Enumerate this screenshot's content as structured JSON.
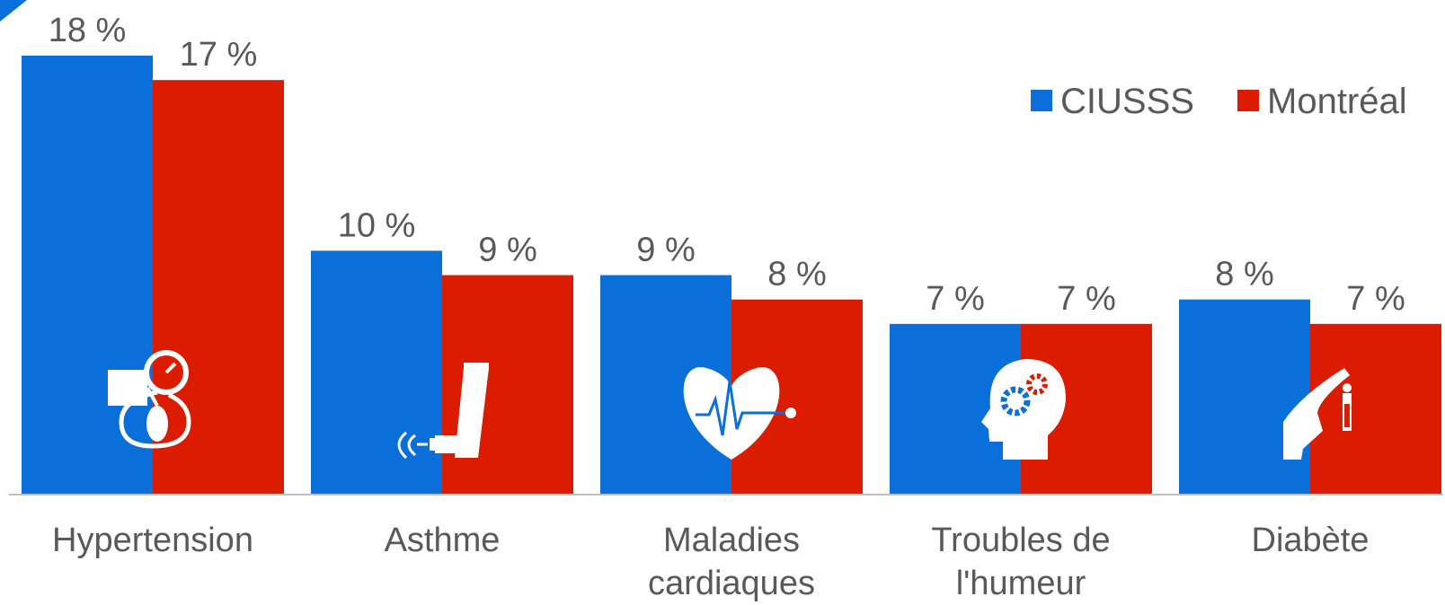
{
  "chart_data": {
    "type": "bar",
    "categories": [
      [
        "Hypertension"
      ],
      [
        "Asthme"
      ],
      [
        "Maladies",
        "cardiaques"
      ],
      [
        "Troubles de",
        "l'humeur"
      ],
      [
        "Diabète"
      ]
    ],
    "category_icons": [
      "blood-pressure-monitor-icon",
      "inhaler-icon",
      "heart-ecg-icon",
      "brain-gears-icon",
      "glucose-test-finger-icon"
    ],
    "series": [
      {
        "name": "CIUSSS",
        "color": "#0A6FD8",
        "values": [
          18,
          10,
          9,
          7,
          8
        ],
        "labels": [
          "18 %",
          "10 %",
          "9 %",
          "7 %",
          "8 %"
        ]
      },
      {
        "name": "Montréal",
        "color": "#DC1C00",
        "values": [
          17,
          9,
          8,
          7,
          7
        ],
        "labels": [
          "17 %",
          "9 %",
          "8 %",
          "7 %",
          "7 %"
        ]
      }
    ],
    "ylim": [
      0,
      20
    ],
    "grid": false,
    "legend_position": "top-right",
    "axis_color": "#BFBFBF"
  }
}
